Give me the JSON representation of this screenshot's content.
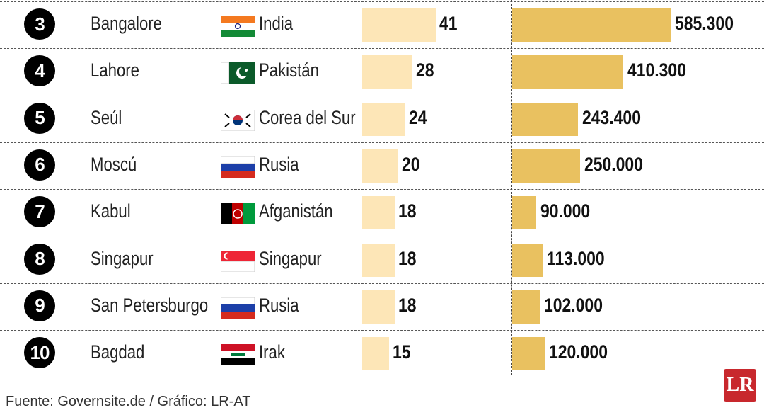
{
  "chart_data": {
    "type": "table",
    "columns": [
      "rank",
      "city",
      "country",
      "value_1",
      "value_2"
    ],
    "rows": [
      {
        "rank": "3",
        "city": "Bangalore",
        "country": "India",
        "flag": "india-flag",
        "value_1": 41,
        "value_1_label": "41",
        "value_2": 585300,
        "value_2_label": "585.300"
      },
      {
        "rank": "4",
        "city": "Lahore",
        "country": "Pakistán",
        "flag": "pakistan-flag",
        "value_1": 28,
        "value_1_label": "28",
        "value_2": 410300,
        "value_2_label": "410.300"
      },
      {
        "rank": "5",
        "city": "Seúl",
        "country": "Corea del Sur",
        "flag": "south-korea-flag",
        "value_1": 24,
        "value_1_label": "24",
        "value_2": 243400,
        "value_2_label": "243.400"
      },
      {
        "rank": "6",
        "city": "Moscú",
        "country": "Rusia",
        "flag": "russia-flag",
        "value_1": 20,
        "value_1_label": "20",
        "value_2": 250000,
        "value_2_label": "250.000"
      },
      {
        "rank": "7",
        "city": "Kabul",
        "country": "Afganistán",
        "flag": "afghanistan-flag",
        "value_1": 18,
        "value_1_label": "18",
        "value_2": 90000,
        "value_2_label": "90.000"
      },
      {
        "rank": "8",
        "city": "Singapur",
        "country": "Singapur",
        "flag": "singapore-flag",
        "value_1": 18,
        "value_1_label": "18",
        "value_2": 113000,
        "value_2_label": "113.000"
      },
      {
        "rank": "9",
        "city": "San Petersburgo",
        "country": "Rusia",
        "flag": "russia-flag",
        "value_1": 18,
        "value_1_label": "18",
        "value_2": 102000,
        "value_2_label": "102.000"
      },
      {
        "rank": "10",
        "city": "Bagdad",
        "country": "Irak",
        "flag": "iraq-flag",
        "value_1": 15,
        "value_1_label": "15",
        "value_2": 120000,
        "value_2_label": "120.000"
      }
    ],
    "colors": {
      "value_1_bar": "#fde6b7",
      "value_2_bar": "#e9c160"
    }
  },
  "source": "Fuente: Governsite.de / Gráfico: LR-AT",
  "logo": "LR"
}
